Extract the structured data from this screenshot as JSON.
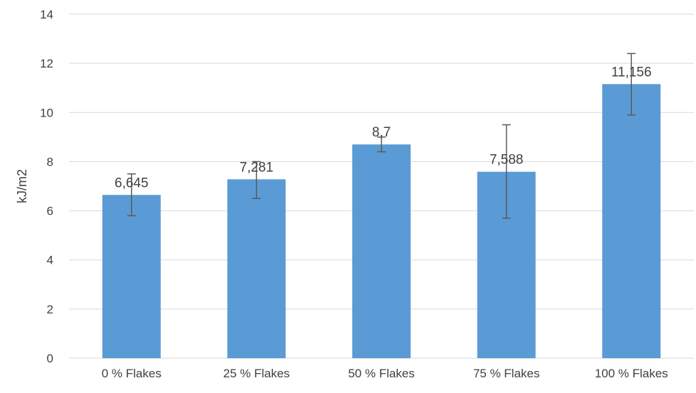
{
  "chart_data": {
    "type": "bar",
    "categories": [
      "0 % Flakes",
      "25 % Flakes",
      "50 % Flakes",
      "75 % Flakes",
      "100 % Flakes"
    ],
    "values": [
      6.645,
      7.281,
      8.7,
      7.588,
      11.156
    ],
    "data_labels": [
      "6,645",
      "7,281",
      "8,7",
      "7,588",
      "11,156"
    ],
    "error_bars": [
      {
        "low": 5.8,
        "high": 7.5
      },
      {
        "low": 6.5,
        "high": 8.0
      },
      {
        "low": 8.4,
        "high": 9.0
      },
      {
        "low": 5.7,
        "high": 9.5
      },
      {
        "low": 9.9,
        "high": 12.4
      }
    ],
    "title": "",
    "xlabel": "",
    "ylabel": "kJ/m2",
    "ylim": [
      0,
      14
    ],
    "yticks": [
      0,
      2,
      4,
      6,
      8,
      10,
      12,
      14
    ],
    "grid": true,
    "legend": "none",
    "colors": {
      "bar": "#5B9BD5",
      "grid": "#D9D9D9",
      "error": "#595959",
      "text": "#404040"
    }
  }
}
